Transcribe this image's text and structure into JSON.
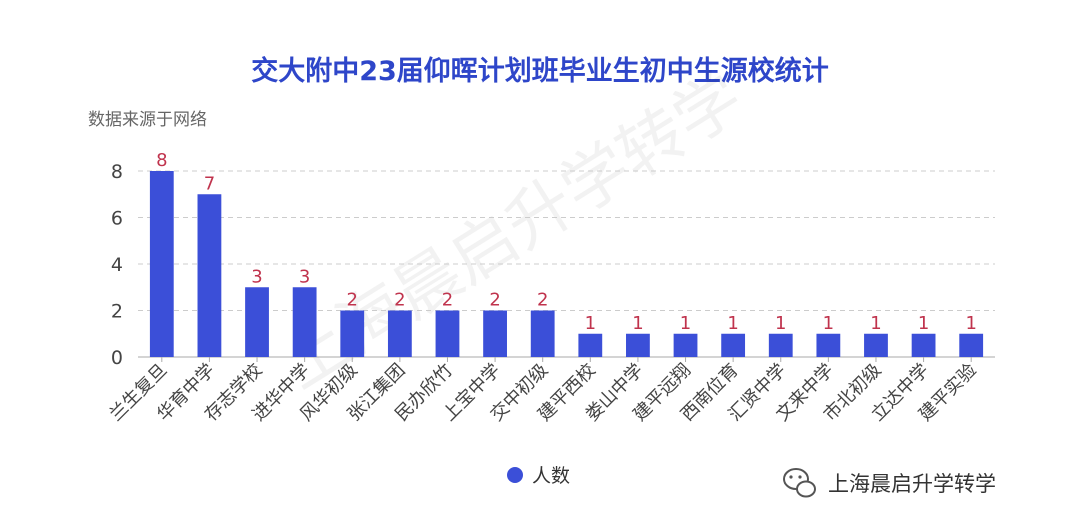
{
  "chart_data": {
    "type": "bar",
    "title": "交大附中23届仰晖计划班毕业生初中生源校统计",
    "subtitle": "数据来源于网络",
    "categories": [
      "兰生复旦",
      "华育中学",
      "存志学校",
      "进华中学",
      "风华初级",
      "张江集团",
      "民办欣竹",
      "上宝中学",
      "交中初级",
      "建平西校",
      "娄山中学",
      "建平远翔",
      "西南位育",
      "汇贤中学",
      "文来中学",
      "市北初级",
      "立达中学",
      "建平实验"
    ],
    "series": [
      {
        "name": "人数",
        "values": [
          8,
          7,
          3,
          3,
          2,
          2,
          2,
          2,
          2,
          1,
          1,
          1,
          1,
          1,
          1,
          1,
          1,
          1
        ]
      }
    ],
    "yticks": [
      "0",
      "2",
      "4",
      "6",
      "8"
    ],
    "ylim": [
      0,
      8
    ],
    "grid": true,
    "legend_position": "bottom",
    "colors": {
      "bar": "#3b4fd8",
      "label": "#c0334d",
      "title": "#2e46c9"
    }
  },
  "watermark": {
    "diagonal": "上海晨启升学转学",
    "footer": "上海晨启升学转学"
  }
}
